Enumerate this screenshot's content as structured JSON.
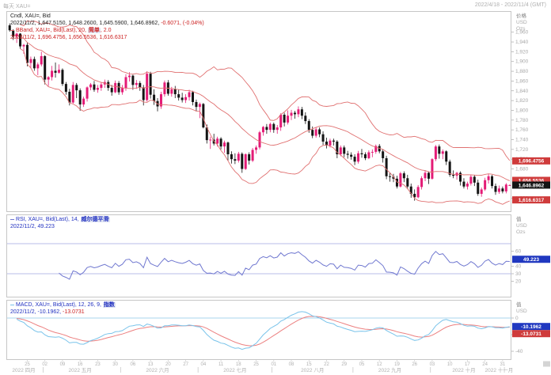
{
  "chrome": {
    "top_left": "每天 XAU=",
    "top_right": "2022/4/18 - 2022/11/4 (GMT)"
  },
  "main_panel": {
    "legend": {
      "title": "Cndl, XAU=, Bid",
      "ohlc": "2022/11/2, 1,647.5150, 1,648.2600, 1,645.5900, 1,646.8962,",
      "change": "-0.6071, (-0.04%)",
      "bband_pre": "BBand, XAU=, Bid(Last), 20, ",
      "bband_param": "简单",
      "bband_post": ", 2.0",
      "bband_values": "2022/11/2, 1,696.4756, 1,656.5536, 1,616.6317"
    },
    "axis": {
      "title": "价格",
      "unit": "USD",
      "unit2": "Ozs",
      "ticks": [
        1960,
        1940,
        1920,
        1900,
        1880,
        1860,
        1840,
        1820,
        1800,
        1780,
        1760,
        1740,
        1720,
        1700,
        1680,
        1620
      ],
      "tags": [
        {
          "label": "1,696.4756",
          "value": 1696.4756,
          "style": "red"
        },
        {
          "label": "1,656.5536",
          "value": 1656.5536,
          "style": "red"
        },
        {
          "label": "1,646.8962",
          "value": 1646.8962,
          "style": "black"
        },
        {
          "label": "1,616.6317",
          "value": 1616.6317,
          "style": "red"
        }
      ]
    }
  },
  "rsi_panel": {
    "legend": {
      "pre": "RSI, XAU=, Bid(Last), 14, ",
      "param": "威尔德平滑",
      "values": "2022/11/2, 49.223"
    },
    "axis": {
      "title": "值",
      "unit": "USD",
      "unit2": "Ozs",
      "ticks": [
        60,
        40,
        30,
        20
      ],
      "tag": {
        "label": "49.223",
        "value": 49.223,
        "style": "blue"
      }
    },
    "levels": [
      70,
      30
    ],
    "period": 14
  },
  "macd_panel": {
    "legend": {
      "pre": "MACD, XAU=, Bid(Last), 12, 26, 9, ",
      "param": "指数",
      "v1": "2022/11/2, -10.1962, ",
      "v2": "-13.0731"
    },
    "axis": {
      "title": "值",
      "unit": "USD",
      "ticks": [
        0,
        -20,
        -40
      ],
      "tags": [
        {
          "label": "-10.1962",
          "value": -10.1962,
          "style": "blue"
        },
        {
          "label": "-13.0731",
          "value": -13.0731,
          "style": "red"
        }
      ]
    }
  },
  "time_axis": {
    "weeks": [
      {
        "i": 5,
        "t": "25"
      },
      {
        "i": 10,
        "t": "02"
      },
      {
        "i": 15,
        "t": "09"
      },
      {
        "i": 20,
        "t": "16"
      },
      {
        "i": 25,
        "t": "23"
      },
      {
        "i": 30,
        "t": "30"
      },
      {
        "i": 35,
        "t": "06"
      },
      {
        "i": 40,
        "t": "13"
      },
      {
        "i": 45,
        "t": "20"
      },
      {
        "i": 50,
        "t": "27"
      },
      {
        "i": 55,
        "t": "04"
      },
      {
        "i": 60,
        "t": "11"
      },
      {
        "i": 65,
        "t": "18"
      },
      {
        "i": 70,
        "t": "25"
      },
      {
        "i": 75,
        "t": "01"
      },
      {
        "i": 80,
        "t": "08"
      },
      {
        "i": 85,
        "t": "15"
      },
      {
        "i": 90,
        "t": "22"
      },
      {
        "i": 95,
        "t": "29"
      },
      {
        "i": 100,
        "t": "05"
      },
      {
        "i": 105,
        "t": "12"
      },
      {
        "i": 110,
        "t": "19"
      },
      {
        "i": 115,
        "t": "26"
      },
      {
        "i": 120,
        "t": "03"
      },
      {
        "i": 125,
        "t": "10"
      },
      {
        "i": 130,
        "t": "17"
      },
      {
        "i": 135,
        "t": "24"
      },
      {
        "i": 140,
        "t": "31"
      }
    ],
    "months": [
      {
        "i": 4,
        "t": "2022 四月"
      },
      {
        "i": 20,
        "t": "2022 五月"
      },
      {
        "i": 42,
        "t": "2022 六月"
      },
      {
        "i": 64,
        "t": "2022 七月"
      },
      {
        "i": 86,
        "t": "2022 八月"
      },
      {
        "i": 108,
        "t": "2022 九月"
      },
      {
        "i": 129,
        "t": "2022 十月"
      },
      {
        "i": 139,
        "t": "2022 十一月"
      }
    ],
    "boundaries": [
      10,
      32,
      54,
      75,
      98,
      120,
      141
    ]
  },
  "colors": {
    "up": "#e41b76",
    "down": "#141414",
    "band": "#e07070",
    "band_tag": "#cf3b3b",
    "close_tag": "#141414",
    "rsi_line": "#7078d0",
    "rsi_level": "#b8bce8",
    "blue_tag": "#2038c0",
    "macd_line": "#79c3ea",
    "macd_signal": "#ec8080",
    "macd_zero": "#a8d4ee",
    "tick_text": "#a8a8a8",
    "time_text": "#b0b0b0",
    "border": "#c6c6c6"
  },
  "chart_data": {
    "type": "candlestick+indicators",
    "symbol": "XAU=",
    "interval": "每天",
    "last_date": "2022/11/2",
    "ylim": [
      1595,
      2000
    ],
    "overlays": [
      {
        "type": "bollinger",
        "period": 20,
        "mode": "简单",
        "stddev": 2.0,
        "last": {
          "upper": 1696.4756,
          "middle": 1656.5536,
          "lower": 1616.6317
        }
      }
    ],
    "studies": [
      {
        "type": "RSI",
        "period": 14,
        "smoothing": "威尔德平滑",
        "last": 49.223,
        "levels": [
          30,
          70
        ]
      },
      {
        "type": "MACD",
        "fast": 12,
        "slow": 26,
        "signal": 9,
        "mode": "指数",
        "last_macd": -10.1962,
        "last_signal": -13.0731
      }
    ],
    "candles": [
      [
        1974,
        1978,
        1961,
        1964
      ],
      [
        1964,
        1966,
        1944,
        1951
      ],
      [
        1951,
        1959,
        1938,
        1957
      ],
      [
        1957,
        1958,
        1926,
        1931
      ],
      [
        1931,
        1936,
        1916,
        1934
      ],
      [
        1934,
        1939,
        1890,
        1897
      ],
      [
        1897,
        1910,
        1886,
        1905
      ],
      [
        1905,
        1910,
        1881,
        1886
      ],
      [
        1886,
        1898,
        1872,
        1894
      ],
      [
        1894,
        1920,
        1890,
        1911
      ],
      [
        1911,
        1913,
        1853,
        1863
      ],
      [
        1863,
        1870,
        1850,
        1868
      ],
      [
        1868,
        1891,
        1861,
        1881
      ],
      [
        1881,
        1898,
        1867,
        1877
      ],
      [
        1877,
        1894,
        1875,
        1883
      ],
      [
        1883,
        1886,
        1850,
        1854
      ],
      [
        1854,
        1858,
        1832,
        1838
      ],
      [
        1838,
        1844,
        1810,
        1816
      ],
      [
        1816,
        1858,
        1814,
        1852
      ],
      [
        1852,
        1856,
        1825,
        1841
      ],
      [
        1841,
        1845,
        1799,
        1812
      ],
      [
        1812,
        1828,
        1807,
        1824
      ],
      [
        1824,
        1849,
        1818,
        1847
      ],
      [
        1847,
        1856,
        1841,
        1853
      ],
      [
        1853,
        1860,
        1838,
        1842
      ],
      [
        1842,
        1852,
        1836,
        1846
      ],
      [
        1846,
        1858,
        1840,
        1853
      ],
      [
        1853,
        1863,
        1846,
        1858
      ],
      [
        1858,
        1862,
        1840,
        1846
      ],
      [
        1846,
        1852,
        1830,
        1837
      ],
      [
        1837,
        1861,
        1835,
        1856
      ],
      [
        1856,
        1860,
        1832,
        1837
      ],
      [
        1837,
        1852,
        1832,
        1846
      ],
      [
        1846,
        1874,
        1840,
        1868
      ],
      [
        1868,
        1878,
        1859,
        1871
      ],
      [
        1871,
        1873,
        1842,
        1852
      ],
      [
        1852,
        1862,
        1844,
        1856
      ],
      [
        1856,
        1860,
        1840,
        1847
      ],
      [
        1847,
        1852,
        1810,
        1821
      ],
      [
        1821,
        1880,
        1818,
        1875
      ],
      [
        1875,
        1879,
        1824,
        1832
      ],
      [
        1832,
        1843,
        1811,
        1819
      ],
      [
        1819,
        1825,
        1798,
        1808
      ],
      [
        1808,
        1838,
        1803,
        1833
      ],
      [
        1833,
        1861,
        1828,
        1857
      ],
      [
        1857,
        1862,
        1830,
        1834
      ],
      [
        1834,
        1848,
        1828,
        1843
      ],
      [
        1843,
        1850,
        1825,
        1833
      ],
      [
        1833,
        1842,
        1820,
        1826
      ],
      [
        1826,
        1836,
        1816,
        1821
      ],
      [
        1821,
        1833,
        1815,
        1827
      ],
      [
        1827,
        1842,
        1820,
        1837
      ],
      [
        1837,
        1840,
        1810,
        1817
      ],
      [
        1817,
        1822,
        1798,
        1807
      ],
      [
        1807,
        1816,
        1784,
        1813
      ],
      [
        1813,
        1815,
        1763,
        1765
      ],
      [
        1765,
        1771,
        1732,
        1739
      ],
      [
        1739,
        1746,
        1721,
        1740
      ],
      [
        1740,
        1752,
        1728,
        1732
      ],
      [
        1732,
        1746,
        1726,
        1742
      ],
      [
        1742,
        1745,
        1720,
        1726
      ],
      [
        1726,
        1738,
        1713,
        1734
      ],
      [
        1734,
        1736,
        1697,
        1710
      ],
      [
        1710,
        1716,
        1691,
        1700
      ],
      [
        1700,
        1712,
        1690,
        1697
      ],
      [
        1697,
        1715,
        1693,
        1711
      ],
      [
        1711,
        1714,
        1672,
        1680
      ],
      [
        1680,
        1712,
        1678,
        1710
      ],
      [
        1710,
        1714,
        1689,
        1697
      ],
      [
        1697,
        1723,
        1694,
        1719
      ],
      [
        1719,
        1728,
        1711,
        1724
      ],
      [
        1724,
        1758,
        1720,
        1755
      ],
      [
        1755,
        1768,
        1748,
        1766
      ],
      [
        1766,
        1772,
        1752,
        1760
      ],
      [
        1760,
        1775,
        1755,
        1772
      ],
      [
        1772,
        1775,
        1754,
        1760
      ],
      [
        1760,
        1770,
        1752,
        1765
      ],
      [
        1765,
        1794,
        1758,
        1791
      ],
      [
        1791,
        1795,
        1767,
        1775
      ],
      [
        1775,
        1800,
        1771,
        1789
      ],
      [
        1789,
        1801,
        1780,
        1795
      ],
      [
        1795,
        1799,
        1783,
        1792
      ],
      [
        1792,
        1808,
        1786,
        1802
      ],
      [
        1802,
        1807,
        1782,
        1789
      ],
      [
        1789,
        1796,
        1772,
        1778
      ],
      [
        1778,
        1782,
        1754,
        1760
      ],
      [
        1760,
        1767,
        1743,
        1748
      ],
      [
        1748,
        1766,
        1744,
        1761
      ],
      [
        1761,
        1765,
        1745,
        1751
      ],
      [
        1751,
        1757,
        1729,
        1736
      ],
      [
        1736,
        1744,
        1722,
        1728
      ],
      [
        1728,
        1742,
        1724,
        1738
      ],
      [
        1738,
        1742,
        1728,
        1736
      ],
      [
        1736,
        1739,
        1702,
        1710
      ],
      [
        1710,
        1728,
        1706,
        1724
      ],
      [
        1724,
        1728,
        1704,
        1711
      ],
      [
        1711,
        1717,
        1701,
        1709
      ],
      [
        1709,
        1714,
        1699,
        1705
      ],
      [
        1705,
        1710,
        1688,
        1695
      ],
      [
        1695,
        1717,
        1691,
        1712
      ],
      [
        1712,
        1721,
        1703,
        1710
      ],
      [
        1710,
        1714,
        1698,
        1702
      ],
      [
        1702,
        1718,
        1700,
        1714
      ],
      [
        1714,
        1720,
        1704,
        1715
      ],
      [
        1715,
        1730,
        1711,
        1727
      ],
      [
        1727,
        1731,
        1712,
        1716
      ],
      [
        1716,
        1720,
        1693,
        1702
      ],
      [
        1702,
        1707,
        1659,
        1665
      ],
      [
        1665,
        1672,
        1654,
        1664
      ],
      [
        1664,
        1670,
        1653,
        1660
      ],
      [
        1660,
        1666,
        1640,
        1644
      ],
      [
        1644,
        1674,
        1642,
        1671
      ],
      [
        1671,
        1675,
        1653,
        1661
      ],
      [
        1661,
        1668,
        1640,
        1644
      ],
      [
        1644,
        1650,
        1621,
        1629
      ],
      [
        1629,
        1638,
        1615,
        1622
      ],
      [
        1622,
        1647,
        1620,
        1643
      ],
      [
        1643,
        1665,
        1638,
        1661
      ],
      [
        1661,
        1676,
        1655,
        1672
      ],
      [
        1672,
        1675,
        1649,
        1660
      ],
      [
        1660,
        1702,
        1658,
        1700
      ],
      [
        1700,
        1729,
        1696,
        1726
      ],
      [
        1726,
        1730,
        1701,
        1711
      ],
      [
        1711,
        1720,
        1700,
        1716
      ],
      [
        1716,
        1718,
        1688,
        1695
      ],
      [
        1695,
        1699,
        1664,
        1668
      ],
      [
        1668,
        1677,
        1661,
        1666
      ],
      [
        1666,
        1674,
        1658,
        1672
      ],
      [
        1672,
        1675,
        1646,
        1654
      ],
      [
        1654,
        1661,
        1640,
        1644
      ],
      [
        1644,
        1654,
        1638,
        1650
      ],
      [
        1650,
        1668,
        1646,
        1664
      ],
      [
        1664,
        1668,
        1645,
        1652
      ],
      [
        1652,
        1658,
        1625,
        1629
      ],
      [
        1629,
        1642,
        1623,
        1638
      ],
      [
        1638,
        1662,
        1635,
        1657
      ],
      [
        1657,
        1670,
        1650,
        1665
      ],
      [
        1665,
        1668,
        1640,
        1645
      ],
      [
        1645,
        1650,
        1627,
        1633
      ],
      [
        1633,
        1646,
        1629,
        1640
      ],
      [
        1640,
        1644,
        1630,
        1634
      ],
      [
        1634,
        1651,
        1630,
        1648
      ],
      [
        1647,
        1648,
        1646,
        1647
      ]
    ]
  }
}
